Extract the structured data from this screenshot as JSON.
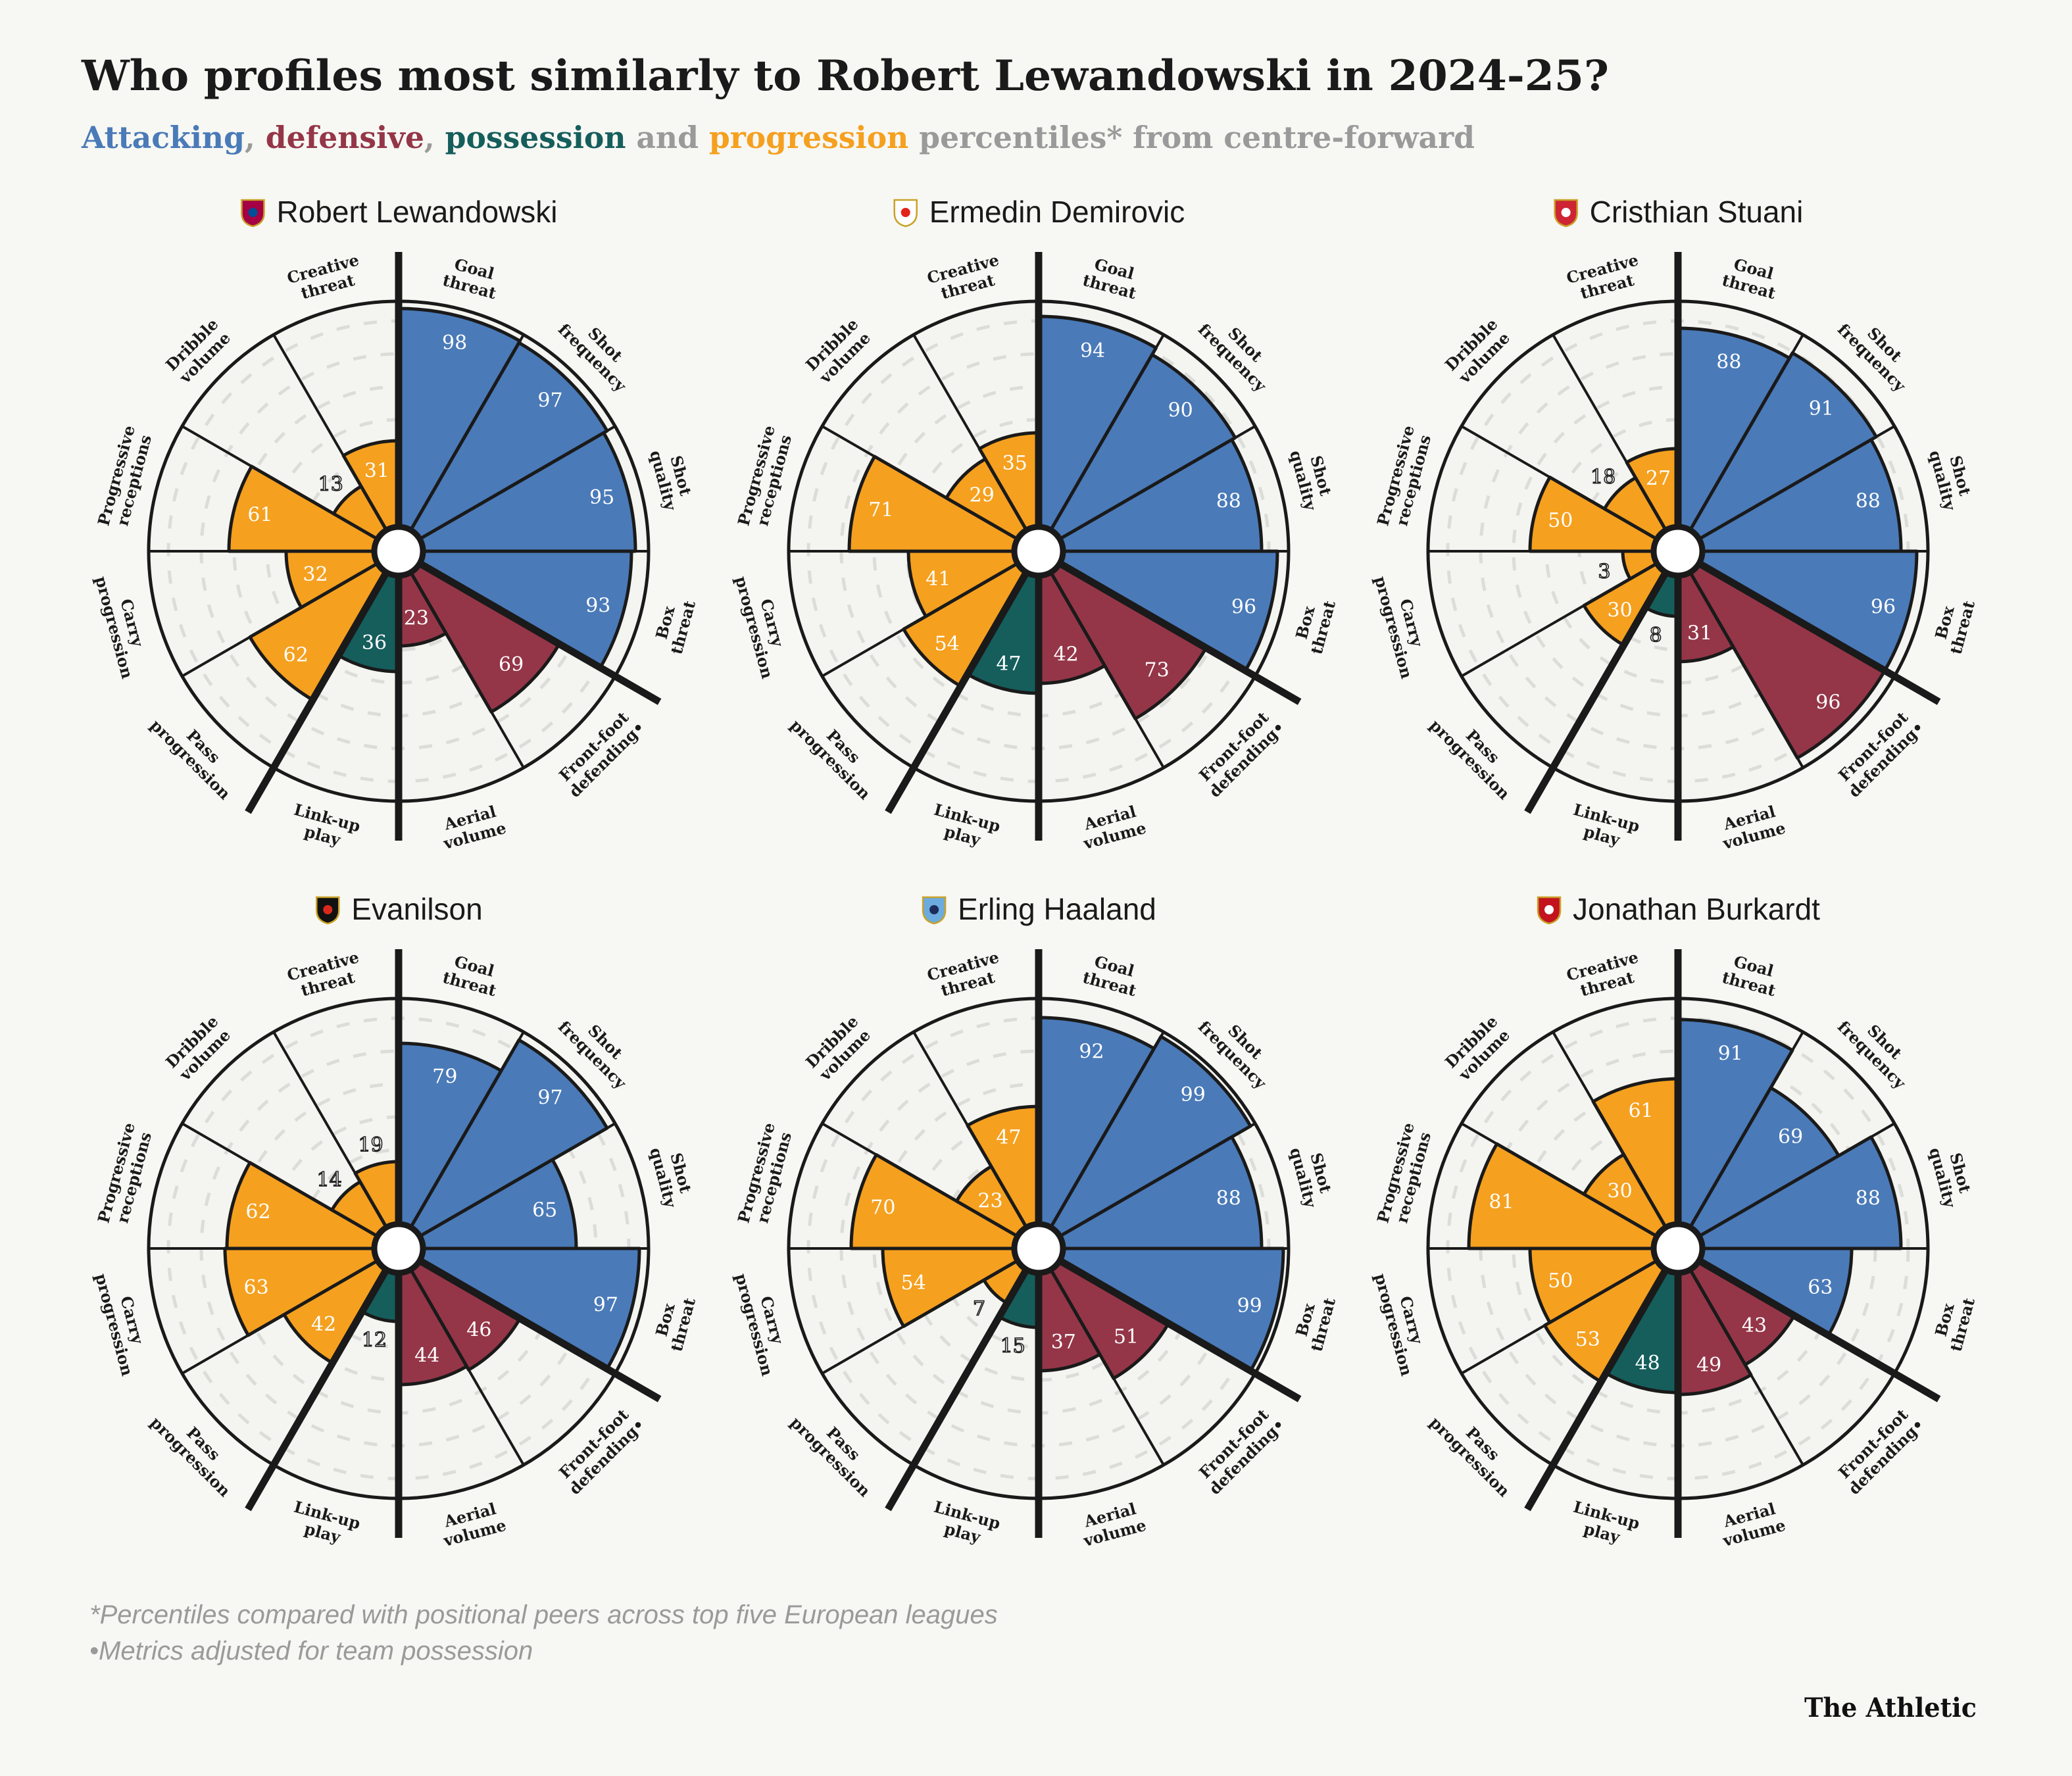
{
  "title": "Who profiles most similarly to Robert Lewandowski in 2024-25?",
  "subtitle": [
    {
      "text": "Attacking",
      "color": "#4a7ab8"
    },
    {
      "text": ", ",
      "color": "#9a9a9a"
    },
    {
      "text": "defensive",
      "color": "#943648"
    },
    {
      "text": ", ",
      "color": "#9a9a9a"
    },
    {
      "text": "possession",
      "color": "#155e5c"
    },
    {
      "text": " and ",
      "color": "#9a9a9a"
    },
    {
      "text": "progression",
      "color": "#f5a01f"
    },
    {
      "text": " percentiles* from centre-forward",
      "color": "#9a9a9a"
    }
  ],
  "colors": {
    "attacking": "#4a7ab8",
    "defensive": "#943648",
    "possession": "#155e5c",
    "progression": "#f5a01f"
  },
  "footnotes": [
    "*Percentiles compared with positional peers across top five European leagues",
    "•Metrics adjusted for team possession"
  ],
  "brand": "The Athletic",
  "chart_data": [
    {
      "type": "polar-bar",
      "title": "Robert Lewandowski",
      "badge_icon": "barcelona-badge-icon",
      "range": [
        0,
        100
      ],
      "categories": [
        "Goal threat",
        "Shot frequency",
        "Shot quality",
        "Box threat",
        "Front-foot defending•",
        "Aerial volume",
        "Link-up play",
        "Pass progression",
        "Carry progression",
        "Progressive receptions",
        "Dribble volume",
        "Creative threat"
      ],
      "groups": [
        "attacking",
        "attacking",
        "attacking",
        "attacking",
        "defensive",
        "defensive",
        "possession",
        "progression",
        "progression",
        "progression",
        "progression",
        "progression"
      ],
      "values": [
        98,
        97,
        95,
        93,
        69,
        23,
        36,
        62,
        32,
        61,
        13,
        31
      ]
    },
    {
      "type": "polar-bar",
      "title": "Ermedin Demirovic",
      "badge_icon": "stuttgart-badge-icon",
      "range": [
        0,
        100
      ],
      "categories": [
        "Goal threat",
        "Shot frequency",
        "Shot quality",
        "Box threat",
        "Front-foot defending•",
        "Aerial volume",
        "Link-up play",
        "Pass progression",
        "Carry progression",
        "Progressive receptions",
        "Dribble volume",
        "Creative threat"
      ],
      "groups": [
        "attacking",
        "attacking",
        "attacking",
        "attacking",
        "defensive",
        "defensive",
        "possession",
        "progression",
        "progression",
        "progression",
        "progression",
        "progression"
      ],
      "values": [
        94,
        90,
        88,
        96,
        73,
        42,
        47,
        54,
        41,
        71,
        29,
        35
      ]
    },
    {
      "type": "polar-bar",
      "title": "Cristhian Stuani",
      "badge_icon": "girona-badge-icon",
      "range": [
        0,
        100
      ],
      "categories": [
        "Goal threat",
        "Shot frequency",
        "Shot quality",
        "Box threat",
        "Front-foot defending•",
        "Aerial volume",
        "Link-up play",
        "Pass progression",
        "Carry progression",
        "Progressive receptions",
        "Dribble volume",
        "Creative threat"
      ],
      "groups": [
        "attacking",
        "attacking",
        "attacking",
        "attacking",
        "defensive",
        "defensive",
        "possession",
        "progression",
        "progression",
        "progression",
        "progression",
        "progression"
      ],
      "values": [
        88,
        91,
        88,
        96,
        96,
        31,
        8,
        30,
        3,
        50,
        18,
        27
      ]
    },
    {
      "type": "polar-bar",
      "title": "Evanilson",
      "badge_icon": "bournemouth-badge-icon",
      "range": [
        0,
        100
      ],
      "categories": [
        "Goal threat",
        "Shot frequency",
        "Shot quality",
        "Box threat",
        "Front-foot defending•",
        "Aerial volume",
        "Link-up play",
        "Pass progression",
        "Carry progression",
        "Progressive receptions",
        "Dribble volume",
        "Creative threat"
      ],
      "groups": [
        "attacking",
        "attacking",
        "attacking",
        "attacking",
        "defensive",
        "defensive",
        "possession",
        "progression",
        "progression",
        "progression",
        "progression",
        "progression"
      ],
      "values": [
        79,
        97,
        65,
        97,
        46,
        44,
        12,
        42,
        63,
        62,
        14,
        19
      ]
    },
    {
      "type": "polar-bar",
      "title": "Erling Haaland",
      "badge_icon": "man-city-badge-icon",
      "range": [
        0,
        100
      ],
      "categories": [
        "Goal threat",
        "Shot frequency",
        "Shot quality",
        "Box threat",
        "Front-foot defending•",
        "Aerial volume",
        "Link-up play",
        "Pass progression",
        "Carry progression",
        "Progressive receptions",
        "Dribble volume",
        "Creative threat"
      ],
      "groups": [
        "attacking",
        "attacking",
        "attacking",
        "attacking",
        "defensive",
        "defensive",
        "possession",
        "progression",
        "progression",
        "progression",
        "progression",
        "progression"
      ],
      "values": [
        92,
        99,
        88,
        99,
        51,
        37,
        15,
        7,
        54,
        70,
        23,
        47
      ]
    },
    {
      "type": "polar-bar",
      "title": "Jonathan Burkardt",
      "badge_icon": "mainz-badge-icon",
      "range": [
        0,
        100
      ],
      "categories": [
        "Goal threat",
        "Shot frequency",
        "Shot quality",
        "Box threat",
        "Front-foot defending•",
        "Aerial volume",
        "Link-up play",
        "Pass progression",
        "Carry progression",
        "Progressive receptions",
        "Dribble volume",
        "Creative threat"
      ],
      "groups": [
        "attacking",
        "attacking",
        "attacking",
        "attacking",
        "defensive",
        "defensive",
        "possession",
        "progression",
        "progression",
        "progression",
        "progression",
        "progression"
      ],
      "values": [
        91,
        69,
        88,
        63,
        43,
        49,
        48,
        53,
        50,
        81,
        30,
        61
      ]
    }
  ]
}
